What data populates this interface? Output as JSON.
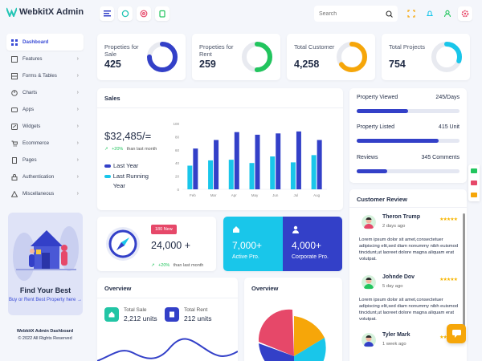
{
  "app": {
    "title": "WebkitX Admin"
  },
  "search": {
    "placeholder": "Search"
  },
  "sidebar": {
    "items": [
      {
        "label": "Dashboard",
        "icon": "grid-icon"
      },
      {
        "label": "Features",
        "icon": "box-icon"
      },
      {
        "label": "Forms & Tables",
        "icon": "table-icon"
      },
      {
        "label": "Charts",
        "icon": "chart-icon"
      },
      {
        "label": "Apps",
        "icon": "apps-icon"
      },
      {
        "label": "Widgets",
        "icon": "widget-icon"
      },
      {
        "label": "Ecommerce",
        "icon": "cart-icon"
      },
      {
        "label": "Pages",
        "icon": "pages-icon"
      },
      {
        "label": "Authentication",
        "icon": "lock-icon"
      },
      {
        "label": "Miscellaneous",
        "icon": "warning-icon"
      }
    ]
  },
  "promo": {
    "title": "Find Your Best",
    "subtitle": "Buy or Rent Best Property here →"
  },
  "footer": {
    "line1": "WebkitX Admin Dashboard",
    "line2": "© 2022 All Rights Reserved"
  },
  "stats": [
    {
      "label": "Propeties for Sale",
      "value": "425",
      "color": "#3340c8"
    },
    {
      "label": "Propeties for Rent",
      "value": "259",
      "color": "#22c55e"
    },
    {
      "label": "Total Customer",
      "value": "4,258",
      "color": "#f6a609"
    },
    {
      "label": "Total Projects",
      "value": "754",
      "color": "#19c6ea"
    }
  ],
  "sales": {
    "title": "Sales",
    "amount": "$32,485/=",
    "change": "+20%",
    "change_text": "than last month",
    "legend_last_year": "Last Year",
    "legend_last_running": "Last Running Year"
  },
  "chart_data": {
    "type": "bar",
    "categories": [
      "Feb",
      "Mar",
      "Apr",
      "May",
      "Jun",
      "Jul",
      "Aug"
    ],
    "ylim": [
      0,
      100
    ],
    "yticks": [
      "0",
      "20",
      "40",
      "60",
      "80",
      "100"
    ],
    "series": [
      {
        "name": "Last Year",
        "color": "#19c6ea",
        "values": [
          36,
          44,
          45,
          40,
          50,
          41,
          52
        ]
      },
      {
        "name": "Last Running Year",
        "color": "#3340c8",
        "values": [
          62,
          75,
          87,
          83,
          85,
          88,
          75
        ]
      }
    ]
  },
  "property": {
    "viewed_label": "Property Viewed",
    "viewed_value": "245/Days",
    "viewed_fill": 0.5,
    "listed_label": "Property Listed",
    "listed_value": "415 Unit",
    "listed_fill": 0.8,
    "reviews_label": "Reviews",
    "reviews_value": "345 Comments",
    "reviews_fill": 0.3
  },
  "new_card": {
    "badge": "180 New",
    "value": "24,000 +",
    "change": "+20%",
    "change_text": "than last month"
  },
  "pro": {
    "active_value": "7,000+",
    "active_label": "Active Pro.",
    "corp_value": "4,000+",
    "corp_label": "Corporate Pro."
  },
  "overview1": {
    "title": "Overview",
    "sale_label": "Total Sale",
    "sale_value": "2,212 units",
    "rent_label": "Total Rent",
    "rent_value": "212 units"
  },
  "overview2": {
    "title": "Overview"
  },
  "customer_review": {
    "title": "Customer Review",
    "items": [
      {
        "name": "Theron Trump",
        "ago": "2 days ago",
        "text": "Lorem ipsum dolor sit amet,consectetuer adipiscing elit,sed diam nonummy nibh euismod tincidunt,ut laoreet dolore magna aliquam erat volutpat.",
        "stars": "★★★★★"
      },
      {
        "name": "Johnde Dov",
        "ago": "5 day ago",
        "text": "Lorem ipsum dolor sit amet,consectetuer adipiscing elit,sed diam nonummy nibh euismod tincidunt,ut laoreet dolore magna aliquam erat volutpat.",
        "stars": "★★★★★"
      },
      {
        "name": "Tyler Mark",
        "ago": "1 week ago",
        "text": "",
        "stars": "★★★★★"
      }
    ]
  }
}
